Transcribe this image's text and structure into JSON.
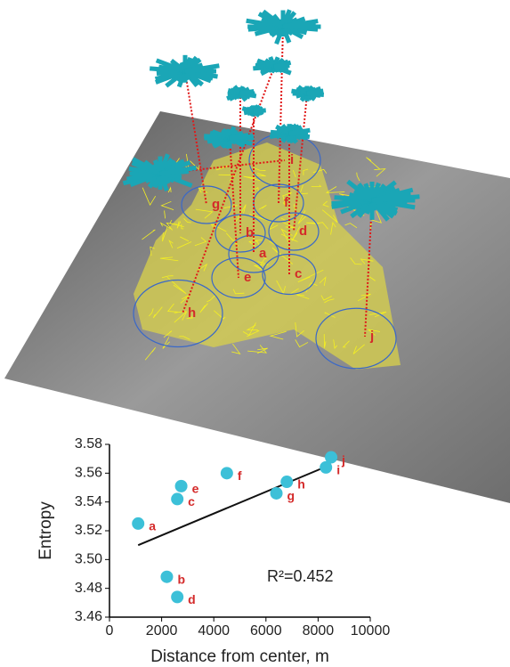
{
  "chart_data": {
    "type": "scatter",
    "x_label": "Distance from center, m",
    "y_label": "Entropy",
    "labels": [
      "a",
      "b",
      "c",
      "d",
      "e",
      "f",
      "g",
      "h",
      "i",
      "j"
    ],
    "x": [
      1100,
      2200,
      2600,
      2600,
      2750,
      4500,
      6400,
      6800,
      8300,
      8500
    ],
    "values": [
      3.525,
      3.488,
      3.542,
      3.474,
      3.551,
      3.56,
      3.546,
      3.554,
      3.564,
      3.571
    ],
    "color": "#3cc0d8",
    "trendline": {
      "x": [
        1100,
        8500
      ],
      "y": [
        3.51,
        3.566
      ],
      "color": "#111111"
    },
    "annotation": "R²=0.452",
    "xlim": [
      0,
      10000
    ],
    "xticks": [
      0,
      2000,
      4000,
      6000,
      8000,
      10000
    ],
    "ylim": [
      3.46,
      3.58
    ],
    "yticks": [
      3.46,
      3.48,
      {
        "value": 3.5,
        "label": "3.50"
      },
      3.52,
      3.54,
      3.56,
      3.58
    ]
  }
}
